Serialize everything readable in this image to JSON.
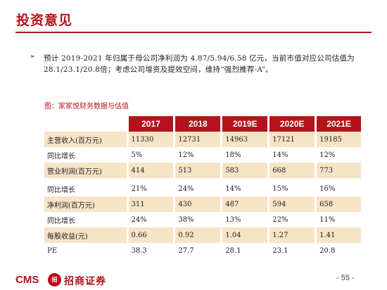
{
  "header": {
    "title": "投资意见"
  },
  "bullet": {
    "icon": "arrow-bullet-icon",
    "text": "预计 2019-2021 年归属于母公司净利润为 4.87/5.94/6.58 亿元，当前市值对应公司估值为28.1/23.1/20.8倍；考虑公司增资及提效空间，维持“强烈推荐-A”。"
  },
  "table": {
    "caption": "图：家家悦财务数据与估值",
    "header_color": "#b5121b",
    "shade_color": "#f7e3c6",
    "columns": [
      "2017",
      "2018",
      "2019E",
      "2020E",
      "2021E"
    ],
    "rows": [
      {
        "label": "主营收入(百万元)",
        "values": [
          "11330",
          "12731",
          "14963",
          "17121",
          "19185"
        ],
        "shaded": true
      },
      {
        "label": "同比增长",
        "values": [
          "5%",
          "12%",
          "18%",
          "14%",
          "12%"
        ],
        "shaded": false
      },
      {
        "label": "营业利润(百万元)",
        "values": [
          "414",
          "513",
          "583",
          "668",
          "773"
        ],
        "shaded": true
      },
      {
        "label": "同比增长",
        "values": [
          "21%",
          "24%",
          "14%",
          "15%",
          "16%"
        ],
        "shaded": false
      },
      {
        "label": "净利润(百万元)",
        "values": [
          "311",
          "430",
          "487",
          "594",
          "658"
        ],
        "shaded": true
      },
      {
        "label": "同比增长",
        "values": [
          "24%",
          "38%",
          "13%",
          "22%",
          "11%"
        ],
        "shaded": false
      },
      {
        "label": "每股收益(元)",
        "values": [
          "0.66",
          "0.92",
          "1.04",
          "1.27",
          "1.41"
        ],
        "shaded": true
      },
      {
        "label": "PE",
        "values": [
          "38.3",
          "27.7",
          "28.1",
          "23.1",
          "20.8"
        ],
        "shaded": false
      }
    ]
  },
  "footer": {
    "logo_text": "CMS",
    "logo_badge": "招",
    "logo_cn": "招商证券",
    "page": "- 55 -"
  }
}
